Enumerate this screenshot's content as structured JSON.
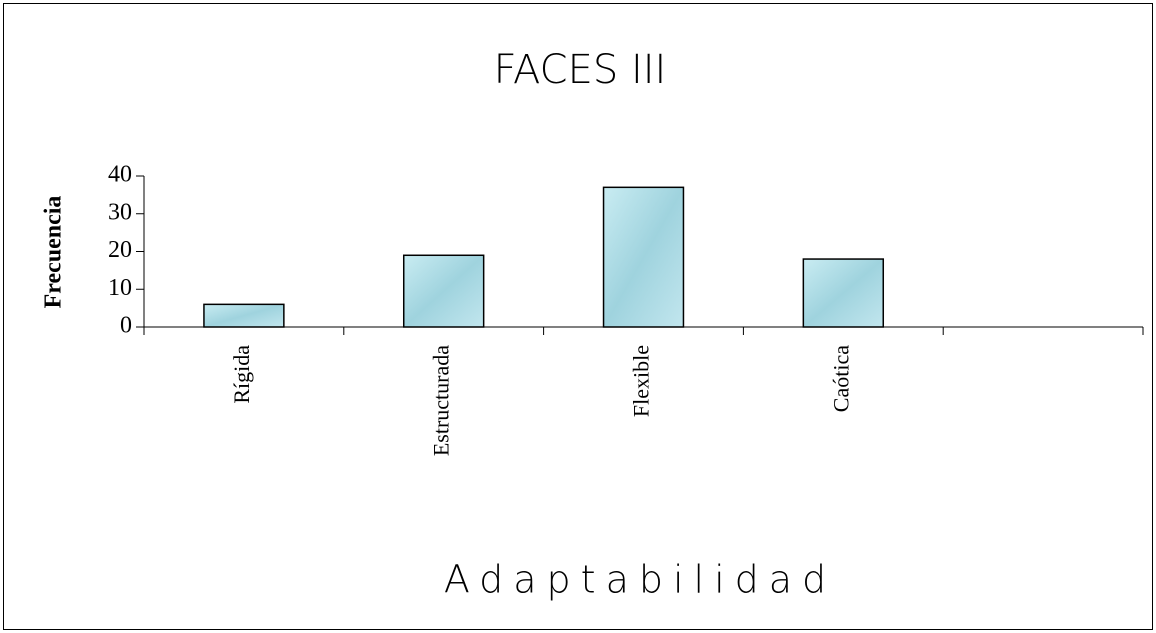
{
  "chart_data": {
    "type": "bar",
    "title": "FACES III",
    "x_label": "Adaptabilidad",
    "y_label": "Frecuencia",
    "categories": [
      "Rígida",
      "Estructurada",
      "Flexible",
      "Caótica",
      null
    ],
    "values": [
      6,
      19,
      37,
      18,
      null
    ],
    "color": "#a9dbe4",
    "ylim": [
      0,
      40
    ],
    "yticks": [
      0,
      10,
      20,
      30,
      40
    ],
    "grid": false
  }
}
